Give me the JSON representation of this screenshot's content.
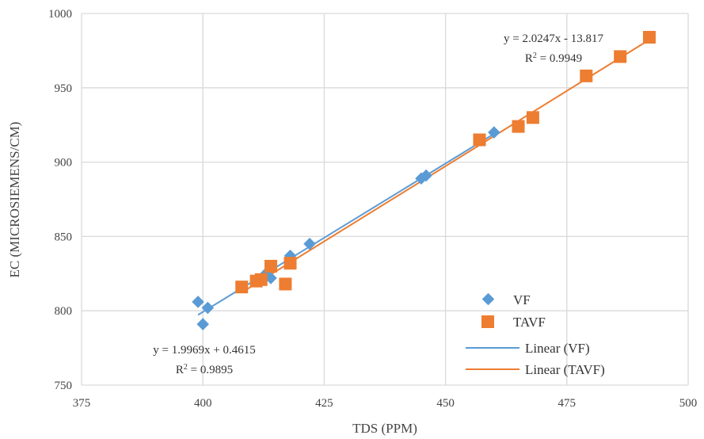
{
  "chart_data": {
    "type": "scatter",
    "xlabel": "TDS (PPM)",
    "ylabel": "EC (MICROSIEMENS/CM)",
    "xlim": [
      375,
      500
    ],
    "ylim": [
      750,
      1000
    ],
    "xticks": [
      "375",
      "400",
      "425",
      "450",
      "475",
      "500"
    ],
    "yticks": [
      "750",
      "800",
      "850",
      "900",
      "950",
      "1000"
    ],
    "grid": true,
    "legend_position": "bottom-right",
    "series": [
      {
        "name": "VF",
        "marker": "diamond",
        "color": "#5b9bd5",
        "x": [
          399,
          400,
          401,
          413,
          414,
          418,
          422,
          445,
          446,
          460
        ],
        "y": [
          806,
          791,
          802,
          825,
          822,
          837,
          845,
          889,
          891,
          920
        ]
      },
      {
        "name": "TAVF",
        "marker": "square",
        "color": "#ed7d31",
        "x": [
          408,
          411,
          412,
          414,
          417,
          418,
          457,
          465,
          468,
          479,
          486,
          492
        ],
        "y": [
          816,
          820,
          821,
          830,
          818,
          832,
          915,
          924,
          930,
          958,
          971,
          984
        ]
      }
    ],
    "trendlines": [
      {
        "name": "Linear (VF)",
        "color": "#5b9bd5",
        "slope": 1.9969,
        "intercept": 0.4615,
        "x_range": [
          399,
          460
        ],
        "equation": "y = 1.9969x + 0.4615",
        "r2_label": "R",
        "r2_value": " = 0.9895"
      },
      {
        "name": "Linear (TAVF)",
        "color": "#ed7d31",
        "slope": 2.0247,
        "intercept": -13.817,
        "x_range": [
          408,
          492
        ],
        "equation": "y = 2.0247x - 13.817",
        "r2_label": "R",
        "r2_value": " = 0.9949"
      }
    ]
  }
}
